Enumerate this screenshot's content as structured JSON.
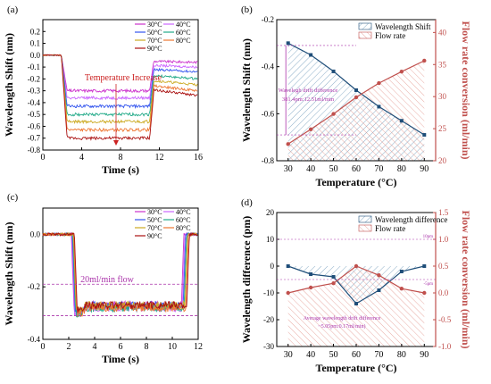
{
  "chart_data": [
    {
      "panel": "(a)",
      "type": "line",
      "xlabel": "Time (s)",
      "ylabel": "Wavelength Shift (nm)",
      "xlim": [
        0,
        16
      ],
      "ylim": [
        -0.8,
        0.3
      ],
      "xticks": [
        "0",
        "4",
        "8",
        "12",
        "16"
      ],
      "yticks": [
        "0.2",
        "0.1",
        "0.0",
        "-0.1",
        "-0.2",
        "-0.3",
        "-0.4",
        "-0.5",
        "-0.6",
        "-0.7",
        "-0.8"
      ],
      "annotation": "Temperature Increase",
      "legend_position": "top-right",
      "legend": [
        "30°C",
        "40°C",
        "50°C",
        "60°C",
        "70°C",
        "80°C",
        "90°C"
      ],
      "series": [
        {
          "name": "30°C",
          "color": "#cc33cc",
          "plateau": -0.3,
          "recover": -0.06
        },
        {
          "name": "40°C",
          "color": "#cc66ff",
          "plateau": -0.36,
          "recover": -0.1
        },
        {
          "name": "50°C",
          "color": "#3355ee",
          "plateau": -0.43,
          "recover": -0.14
        },
        {
          "name": "60°C",
          "color": "#22aa88",
          "plateau": -0.5,
          "recover": -0.2
        },
        {
          "name": "70°C",
          "color": "#ccaa22",
          "plateau": -0.56,
          "recover": -0.25
        },
        {
          "name": "80°C",
          "color": "#ee7733",
          "plateau": -0.63,
          "recover": -0.3
        },
        {
          "name": "90°C",
          "color": "#aa1111",
          "plateau": -0.7,
          "recover": -0.34
        }
      ]
    },
    {
      "panel": "(b)",
      "type": "line",
      "xlabel": "Temperature (°C)",
      "ylabel_left": "Wavelength Shift (nm)",
      "ylabel_right": "Flow rate conversion (ml/min)",
      "xlim": [
        25,
        95
      ],
      "ylim_left": [
        -0.8,
        -0.2
      ],
      "ylim_right": [
        20,
        42
      ],
      "categories": [
        "30",
        "40",
        "50",
        "60",
        "70",
        "80",
        "90"
      ],
      "yticks_left": [
        "-0.2",
        "-0.4",
        "-0.6",
        "-0.8"
      ],
      "yticks_right": [
        "20",
        "25",
        "30",
        "35",
        "40"
      ],
      "legend_position": "top-right",
      "annotation": "Wavelegh drift difference\n381.4pm:12.51ml/min",
      "series": [
        {
          "name": "Wavelength Shift",
          "axis": "left",
          "color": "#1f4e79",
          "x": [
            30,
            40,
            50,
            60,
            70,
            80,
            90
          ],
          "values": [
            -0.3,
            -0.35,
            -0.42,
            -0.5,
            -0.57,
            -0.63,
            -0.69
          ]
        },
        {
          "name": "Flow rate",
          "axis": "right",
          "color": "#c0504d",
          "x": [
            30,
            40,
            50,
            60,
            70,
            80,
            90
          ],
          "values": [
            22.6,
            24.9,
            27.3,
            29.9,
            32.1,
            33.9,
            35.6
          ]
        }
      ]
    },
    {
      "panel": "(c)",
      "type": "line",
      "xlabel": "Time (s)",
      "ylabel": "Wavelength Shift (nm)",
      "xlim": [
        0,
        12
      ],
      "ylim": [
        -0.4,
        0.1
      ],
      "xticks": [
        "0",
        "2",
        "4",
        "6",
        "8",
        "10",
        "12"
      ],
      "yticks": [
        "0.0",
        "-0.2",
        "-0.4"
      ],
      "annotation": "20ml/min flow",
      "legend_position": "top-right",
      "legend": [
        "30°C",
        "40°C",
        "50°C",
        "60°C",
        "70°C",
        "80°C",
        "90°C"
      ],
      "reference_lines": [
        -0.19,
        -0.31
      ],
      "series": [
        {
          "name": "30°C",
          "color": "#cc33cc",
          "plateau": -0.27
        },
        {
          "name": "40°C",
          "color": "#cc66ff",
          "plateau": -0.28
        },
        {
          "name": "50°C",
          "color": "#3355ee",
          "plateau": -0.27
        },
        {
          "name": "60°C",
          "color": "#22aa88",
          "plateau": -0.28
        },
        {
          "name": "70°C",
          "color": "#ccaa22",
          "plateau": -0.27
        },
        {
          "name": "80°C",
          "color": "#ee7733",
          "plateau": -0.28
        },
        {
          "name": "90°C",
          "color": "#aa1111",
          "plateau": -0.27
        }
      ]
    },
    {
      "panel": "(d)",
      "type": "line",
      "xlabel": "Temperature (°C)",
      "ylabel_left": "Wavelength difference (pm)",
      "ylabel_right": "Flow rate conversion (ml/min)",
      "xlim": [
        25,
        95
      ],
      "ylim_left": [
        -30,
        20
      ],
      "ylim_right": [
        -1.0,
        1.5
      ],
      "categories": [
        "30",
        "40",
        "50",
        "60",
        "70",
        "80",
        "90"
      ],
      "yticks_left": [
        "20",
        "10",
        "0",
        "-10",
        "-20",
        "-30"
      ],
      "yticks_right": [
        "1.5",
        "1.0",
        "0.5",
        "0.0",
        "-0.5",
        "-1.0"
      ],
      "legend_position": "top-right",
      "annotation": "Average wavelength drift difference\n~5.05pm:0.17ml/min)",
      "ref_labels": [
        "10pm",
        "-5pm"
      ],
      "series": [
        {
          "name": "Wavelength difference",
          "axis": "left",
          "color": "#1f4e79",
          "x": [
            30,
            40,
            50,
            60,
            70,
            80,
            90
          ],
          "values": [
            0,
            -3,
            -4,
            -14,
            -9,
            -2,
            0
          ]
        },
        {
          "name": "Flow rate",
          "axis": "right",
          "color": "#c0504d",
          "x": [
            30,
            40,
            50,
            60,
            70,
            80,
            90
          ],
          "values": [
            0.0,
            0.1,
            0.18,
            0.5,
            0.33,
            0.08,
            0.0
          ]
        }
      ]
    }
  ]
}
